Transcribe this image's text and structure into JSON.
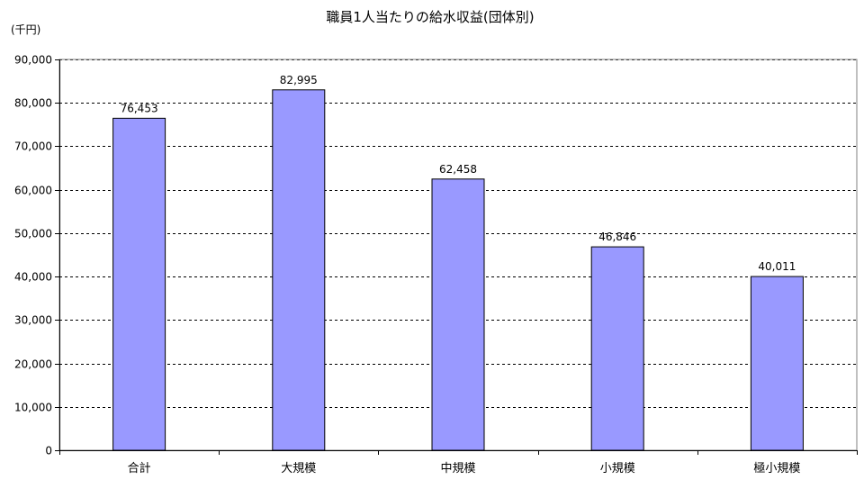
{
  "chart_data": {
    "type": "bar",
    "title": "職員1人当たりの給水収益(団体別)",
    "unit_label": "(千円)",
    "xlabel": "",
    "ylabel": "",
    "categories": [
      "合計",
      "大規模",
      "中規模",
      "小規模",
      "極小規模"
    ],
    "values": [
      76453,
      82995,
      62458,
      46846,
      40011
    ],
    "value_labels": [
      "76,453",
      "82,995",
      "62,458",
      "46,846",
      "40,011"
    ],
    "ylim": [
      0,
      90000
    ],
    "y_ticks": [
      0,
      10000,
      20000,
      30000,
      40000,
      50000,
      60000,
      70000,
      80000,
      90000
    ],
    "y_tick_labels": [
      "0",
      "10,000",
      "20,000",
      "30,000",
      "40,000",
      "50,000",
      "60,000",
      "70,000",
      "80,000",
      "90,000"
    ],
    "grid": true,
    "bar_color": "#9999ff",
    "bar_border_color": "#000000"
  }
}
